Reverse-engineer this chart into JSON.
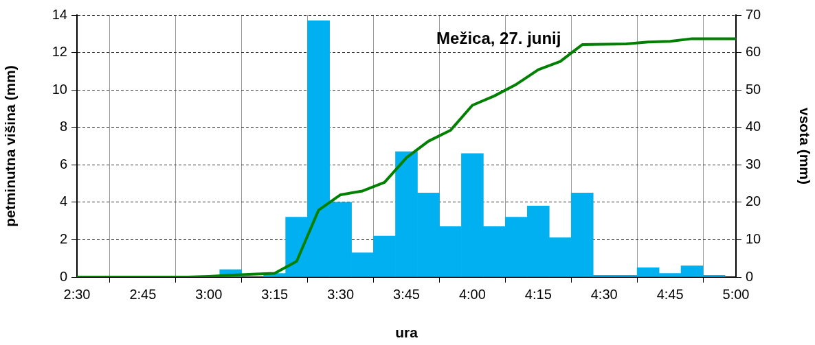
{
  "chart_data": {
    "type": "bar",
    "title": "Mežica, 27. junij",
    "xlabel": "ura",
    "ylabel": "petminutna višina (mm)",
    "y2label": "vsota (mm)",
    "xlim": [
      2.5,
      5
    ],
    "xticks": [
      {
        "value": 2.5,
        "label": "2:30"
      },
      {
        "value": 2.75,
        "label": "2:45"
      },
      {
        "value": 3,
        "label": "3:00"
      },
      {
        "value": 3.25,
        "label": "3:15"
      },
      {
        "value": 3.5,
        "label": "3:30"
      },
      {
        "value": 3.75,
        "label": "3:45"
      },
      {
        "value": 4,
        "label": "4:00"
      },
      {
        "value": 4.25,
        "label": "4:15"
      },
      {
        "value": 4.5,
        "label": "4:30"
      },
      {
        "value": 4.75,
        "label": "4:45"
      },
      {
        "value": 5,
        "label": "5:00"
      }
    ],
    "ylim": [
      0,
      14
    ],
    "yticks": [
      0,
      2,
      4,
      6,
      8,
      10,
      12,
      14
    ],
    "y2lim": [
      0,
      70
    ],
    "y2ticks": [
      0,
      10,
      20,
      30,
      40,
      50,
      60,
      70
    ],
    "grid": true,
    "legend": false,
    "series": [
      {
        "color": "#00b0f0",
        "x": [
          2.5833,
          2.6667,
          2.75,
          2.8333,
          2.9167,
          3,
          3.0833,
          3.1667,
          3.25,
          3.3333,
          3.4167,
          3.5,
          3.5833,
          3.6667,
          3.75,
          3.8333,
          3.9167,
          4,
          4.0833,
          4.1667,
          4.25,
          4.3333,
          4.4167,
          4.5,
          4.5833,
          4.6667,
          4.75,
          4.8333,
          4.9167
        ],
        "values": [
          0,
          0,
          0,
          0,
          0,
          0,
          0.4,
          0,
          0.2,
          3.2,
          13.7,
          4.0,
          1.3,
          2.2,
          6.7,
          4.5,
          2.7,
          6.6,
          2.7,
          3.2,
          3.8,
          2.1,
          4.5,
          0.1,
          0.1,
          0.5,
          0.2,
          0.6,
          0.1
        ]
      },
      {
        "type": "line",
        "axis": "y2",
        "color": "#008000",
        "x": [
          2.5,
          2.5833,
          2.6667,
          2.75,
          2.8333,
          2.9167,
          3,
          3.0833,
          3.1667,
          3.25,
          3.3333,
          3.4167,
          3.5,
          3.5833,
          3.6667,
          3.75,
          3.8333,
          3.9167,
          4,
          4.0833,
          4.1667,
          4.25,
          4.3333,
          4.4167,
          4.5,
          4.5833,
          4.6667,
          4.75,
          4.8333,
          4.9167,
          5
        ],
        "values": [
          0,
          0,
          0,
          0,
          0,
          0,
          0.2,
          0.5,
          0.8,
          1.0,
          4.2,
          17.9,
          22.0,
          23.0,
          25.3,
          31.9,
          36.3,
          39.2,
          45.9,
          48.4,
          51.5,
          55.4,
          57.6,
          62.1,
          62.2,
          62.3,
          62.8,
          63.0,
          63.7,
          63.7,
          63.7
        ]
      }
    ]
  }
}
